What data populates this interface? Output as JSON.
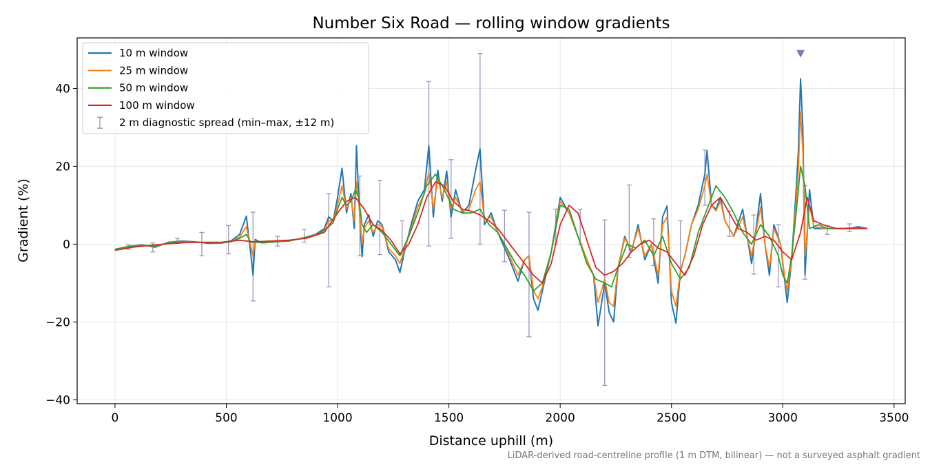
{
  "chart_data": {
    "type": "line",
    "title": "Number Six Road — rolling window gradients",
    "xlabel": "Distance uphill (m)",
    "ylabel": "Gradient (%)",
    "xlim": [
      -170,
      3550
    ],
    "ylim": [
      -41,
      53
    ],
    "xticks": [
      0,
      500,
      1000,
      1500,
      2000,
      2500,
      3000,
      3500
    ],
    "xtick_labels": [
      "0",
      "500",
      "1000",
      "1500",
      "2000",
      "2500",
      "3000",
      "3500"
    ],
    "yticks": [
      -40,
      -20,
      0,
      20,
      40
    ],
    "ytick_labels": [
      "−40",
      "−20",
      "0",
      "20",
      "40"
    ],
    "grid": true,
    "legend_position": "top-left",
    "footnote": "LiDAR-derived road-centreline profile (1 m DTM, bilinear) — not a surveyed asphalt gradient",
    "series": [
      {
        "name": "10 m window",
        "color": "#1f77b4",
        "x": [
          0,
          60,
          120,
          180,
          240,
          300,
          360,
          420,
          480,
          520,
          560,
          590,
          610,
          620,
          630,
          660,
          720,
          780,
          840,
          900,
          940,
          960,
          980,
          1000,
          1020,
          1040,
          1060,
          1075,
          1085,
          1095,
          1110,
          1120,
          1140,
          1160,
          1180,
          1200,
          1230,
          1260,
          1280,
          1300,
          1330,
          1360,
          1390,
          1410,
          1430,
          1450,
          1470,
          1490,
          1510,
          1530,
          1560,
          1590,
          1620,
          1640,
          1660,
          1690,
          1720,
          1750,
          1780,
          1810,
          1840,
          1860,
          1880,
          1900,
          1920,
          1960,
          2000,
          2040,
          2080,
          2120,
          2150,
          2170,
          2200,
          2220,
          2240,
          2260,
          2290,
          2320,
          2350,
          2380,
          2410,
          2440,
          2460,
          2480,
          2500,
          2520,
          2540,
          2560,
          2590,
          2620,
          2650,
          2660,
          2680,
          2700,
          2720,
          2740,
          2780,
          2820,
          2860,
          2900,
          2920,
          2940,
          2960,
          2990,
          3010,
          3020,
          3040,
          3060,
          3070,
          3080,
          3090,
          3100,
          3120,
          3140,
          3200,
          3250,
          3300,
          3340,
          3380
        ],
        "y": [
          -1.5,
          -0.6,
          -0.2,
          -0.8,
          0.5,
          0.8,
          0.6,
          0.2,
          0.3,
          0.8,
          2.5,
          7.2,
          -2.5,
          -8,
          1.2,
          0.3,
          0.6,
          0.8,
          1.5,
          2.5,
          4,
          7,
          6,
          12,
          19.5,
          8,
          13,
          4,
          25.3,
          12,
          -3.2,
          5,
          7.5,
          2,
          6,
          5,
          -2,
          -4,
          -7.3,
          -2,
          5,
          11,
          14,
          25.3,
          7,
          19,
          11,
          18.8,
          7,
          14,
          8,
          10,
          19,
          24.5,
          5,
          8,
          3,
          -1,
          -5,
          -9.5,
          -4,
          -3,
          -14,
          -17,
          -12,
          -2,
          12,
          8,
          2,
          -4,
          -8,
          -21,
          -10,
          -17.5,
          -20,
          -6,
          2,
          -2,
          5,
          -4,
          0,
          -10,
          7,
          9.8,
          -15,
          -20.3,
          -7,
          -3,
          5,
          10,
          18,
          24,
          10,
          9,
          12,
          6,
          2,
          9,
          -5,
          13,
          0,
          -8,
          5,
          0,
          -10,
          -15,
          -4,
          14,
          24,
          42.5,
          30,
          -8,
          14,
          4,
          4,
          4,
          4,
          4.5,
          4
        ]
      },
      {
        "name": "25 m window",
        "color": "#ff7f0e",
        "x": [
          0,
          60,
          120,
          180,
          240,
          300,
          360,
          420,
          480,
          520,
          560,
          590,
          610,
          620,
          630,
          660,
          720,
          780,
          840,
          900,
          940,
          960,
          980,
          1000,
          1020,
          1040,
          1060,
          1075,
          1085,
          1095,
          1110,
          1120,
          1140,
          1160,
          1180,
          1200,
          1230,
          1260,
          1280,
          1300,
          1330,
          1360,
          1390,
          1410,
          1430,
          1450,
          1470,
          1490,
          1510,
          1530,
          1560,
          1590,
          1620,
          1640,
          1660,
          1690,
          1720,
          1750,
          1780,
          1810,
          1840,
          1860,
          1880,
          1900,
          1920,
          1960,
          2000,
          2040,
          2080,
          2120,
          2150,
          2170,
          2200,
          2220,
          2240,
          2260,
          2290,
          2320,
          2350,
          2380,
          2410,
          2440,
          2460,
          2480,
          2500,
          2520,
          2540,
          2560,
          2590,
          2620,
          2650,
          2660,
          2680,
          2700,
          2720,
          2740,
          2780,
          2820,
          2860,
          2900,
          2920,
          2940,
          2960,
          2990,
          3010,
          3020,
          3040,
          3060,
          3070,
          3080,
          3090,
          3100,
          3120,
          3140,
          3200,
          3250,
          3300,
          3340,
          3380
        ],
        "y": [
          -1.4,
          -0.6,
          -0.3,
          -0.6,
          0.4,
          0.7,
          0.5,
          0.3,
          0.3,
          0.7,
          1.8,
          4.5,
          -0.5,
          -3,
          0.8,
          0.3,
          0.6,
          0.8,
          1.5,
          2.4,
          3.5,
          6,
          6,
          10,
          15,
          9,
          12,
          6,
          16,
          11,
          0,
          4,
          6,
          3,
          5,
          4.5,
          -1.2,
          -3,
          -5,
          -1.5,
          4,
          9.5,
          13,
          18.5,
          9,
          17,
          12,
          16,
          9,
          12,
          8.5,
          9,
          14,
          16,
          6,
          7,
          3,
          0,
          -4,
          -8,
          -4,
          -3,
          -12,
          -14,
          -11,
          -2,
          11,
          8,
          2,
          -4,
          -8,
          -15,
          -9,
          -15,
          -16,
          -6,
          1.5,
          -1.5,
          4,
          -3,
          0,
          -8,
          5,
          7,
          -12,
          -16,
          -7,
          -3,
          5,
          9,
          15,
          18,
          10,
          8.5,
          11,
          6,
          2,
          7,
          -3,
          9.5,
          0,
          -6,
          4,
          0,
          -9,
          -12,
          -4,
          11,
          19,
          34,
          24,
          -3,
          10,
          4.5,
          4,
          4,
          4,
          4.2,
          4
        ]
      },
      {
        "name": "50 m window",
        "color": "#2ca02c",
        "x": [
          0,
          60,
          120,
          180,
          240,
          300,
          360,
          420,
          480,
          520,
          560,
          590,
          610,
          630,
          660,
          720,
          780,
          840,
          900,
          940,
          980,
          1000,
          1020,
          1040,
          1060,
          1080,
          1095,
          1110,
          1130,
          1160,
          1200,
          1240,
          1280,
          1320,
          1360,
          1400,
          1440,
          1480,
          1520,
          1560,
          1600,
          1640,
          1680,
          1720,
          1760,
          1800,
          1840,
          1880,
          1920,
          1960,
          2000,
          2040,
          2080,
          2120,
          2160,
          2200,
          2230,
          2260,
          2300,
          2340,
          2380,
          2420,
          2460,
          2500,
          2540,
          2580,
          2620,
          2660,
          2700,
          2740,
          2780,
          2820,
          2860,
          2900,
          2940,
          2980,
          3000,
          3020,
          3040,
          3060,
          3080,
          3100,
          3120,
          3160,
          3200,
          3260,
          3320,
          3380
        ],
        "y": [
          -1.3,
          -0.6,
          -0.3,
          -0.5,
          0.3,
          0.6,
          0.5,
          0.3,
          0.3,
          0.6,
          1.5,
          2.5,
          0.5,
          0.5,
          0.4,
          0.6,
          0.8,
          1.5,
          2.3,
          3.5,
          5.5,
          9,
          12,
          10,
          11,
          14,
          12,
          5,
          3,
          5,
          3,
          0,
          -3,
          2,
          8,
          15,
          18,
          14,
          9,
          8,
          8,
          9,
          5,
          3,
          -1,
          -5,
          -8,
          -12,
          -10,
          -2,
          10,
          9,
          2,
          -5,
          -9,
          -10,
          -11,
          -6,
          0,
          -1,
          1,
          -3,
          2,
          -5,
          -9,
          -6,
          3,
          9,
          15,
          12,
          8,
          3,
          0,
          5,
          2,
          -3,
          -8,
          -10,
          -3,
          8,
          20,
          15,
          4,
          5,
          4,
          4,
          4.2,
          4
        ]
      },
      {
        "name": "100 m window",
        "color": "#d62728",
        "x": [
          0,
          80,
          160,
          240,
          320,
          400,
          480,
          560,
          620,
          700,
          780,
          860,
          940,
          1000,
          1040,
          1080,
          1120,
          1160,
          1200,
          1240,
          1280,
          1320,
          1360,
          1400,
          1440,
          1480,
          1520,
          1560,
          1600,
          1640,
          1680,
          1720,
          1760,
          1800,
          1840,
          1880,
          1920,
          1960,
          2000,
          2040,
          2080,
          2120,
          2160,
          2200,
          2240,
          2280,
          2320,
          2360,
          2400,
          2440,
          2480,
          2520,
          2560,
          2600,
          2640,
          2680,
          2720,
          2760,
          2800,
          2840,
          2880,
          2920,
          2960,
          3000,
          3040,
          3080,
          3110,
          3140,
          3180,
          3240,
          3300,
          3380
        ],
        "y": [
          -1.6,
          -0.8,
          -0.3,
          0.1,
          0.4,
          0.5,
          0.5,
          1,
          0.6,
          0.8,
          1,
          1.5,
          3,
          8,
          11,
          12,
          9,
          5,
          3.5,
          1,
          -2.5,
          0,
          5,
          12,
          16,
          15,
          11,
          9,
          8.5,
          7.5,
          6,
          4,
          1,
          -2,
          -5,
          -8,
          -10,
          -5,
          5,
          10,
          8,
          1,
          -6,
          -8,
          -7,
          -5,
          -2,
          0,
          1,
          -1,
          -2,
          -5,
          -8,
          -3,
          5,
          10,
          12,
          8,
          4,
          3,
          1,
          2,
          1,
          -2,
          -4,
          3,
          12,
          6,
          5,
          4,
          4,
          4
        ]
      }
    ],
    "error_bars": {
      "name": "2 m diagnostic spread (min–max, ±12 m)",
      "color": "#9c96bd",
      "x": [
        60,
        170,
        280,
        390,
        510,
        620,
        730,
        850,
        960,
        1100,
        1190,
        1290,
        1410,
        1510,
        1640,
        1750,
        1860,
        1980,
        2090,
        2200,
        2310,
        2420,
        2540,
        2650,
        2760,
        2870,
        2980,
        3100,
        3200,
        3300
      ],
      "low": [
        -1.3,
        -2,
        0.2,
        -3,
        -2.5,
        -14.6,
        -0.5,
        0.5,
        -11,
        -3,
        -2.7,
        -4,
        -0.5,
        1.5,
        0,
        -4.5,
        -23.8,
        0,
        0,
        -36.3,
        -3.4,
        -5.5,
        -6,
        10,
        2,
        -7.7,
        -11,
        -9,
        2.5,
        3.2
      ],
      "high": [
        -0.2,
        0.3,
        1.5,
        3,
        4.8,
        8.2,
        2,
        3.8,
        13,
        17.5,
        16.4,
        6,
        41.8,
        21.7,
        49,
        8.7,
        8.2,
        9,
        9,
        6.2,
        15.2,
        6.5,
        6,
        24.2,
        8.5,
        7.5,
        5,
        15,
        4.7,
        5.2
      ]
    },
    "peak_marker": {
      "x": 3080,
      "y": 49,
      "color": "#8172b2"
    }
  }
}
